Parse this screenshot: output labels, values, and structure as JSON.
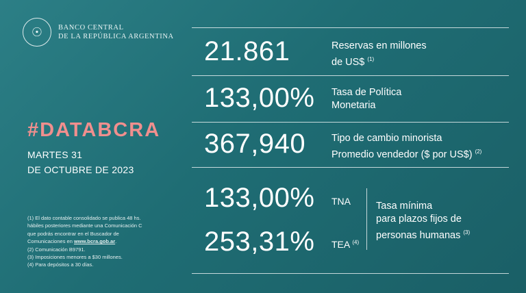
{
  "logo": {
    "line1": "BANCO CENTRAL",
    "line2": "DE LA REPÚBLICA ARGENTINA"
  },
  "hashtag": "#DATABCRA",
  "date": {
    "line1": "MARTES 31",
    "line2": "DE OCTUBRE DE 2023"
  },
  "footnotes": {
    "n1_a": "(1) El dato contable consolidado se publica 48 hs.",
    "n1_b": "hábiles posteriores mediante una Comunicación C",
    "n1_c": "que podrás encontrar en el Buscador de",
    "n1_d": "Comunicaciones en ",
    "n1_link": "www.bcra.gob.ar",
    "n1_end": ".",
    "n2": "(2) Comunicación B9791.",
    "n3": "(3) Imposiciones menores a $30 millones.",
    "n4": "(4) Para depósitos a 30 días."
  },
  "metrics": {
    "reservas": {
      "value": "21.861",
      "label1": "Reservas en millones",
      "label2": "de US$",
      "note": "(1)"
    },
    "tasa_politica": {
      "value": "133,00%",
      "label1": "Tasa de Política",
      "label2": "Monetaria"
    },
    "tipo_cambio": {
      "value": "367,940",
      "label1": "Tipo de cambio minorista",
      "label2": "Promedio vendedor ($ por US$)",
      "note": "(2)"
    },
    "tna": {
      "value": "133,00%",
      "label": "TNA"
    },
    "tea": {
      "value": "253,31%",
      "label": "TEA",
      "note": "(4)"
    },
    "plazo_fijo": {
      "line1": "Tasa mínima",
      "line2": "para plazos fijos de",
      "line3": "personas humanas",
      "note": "(3)"
    }
  }
}
